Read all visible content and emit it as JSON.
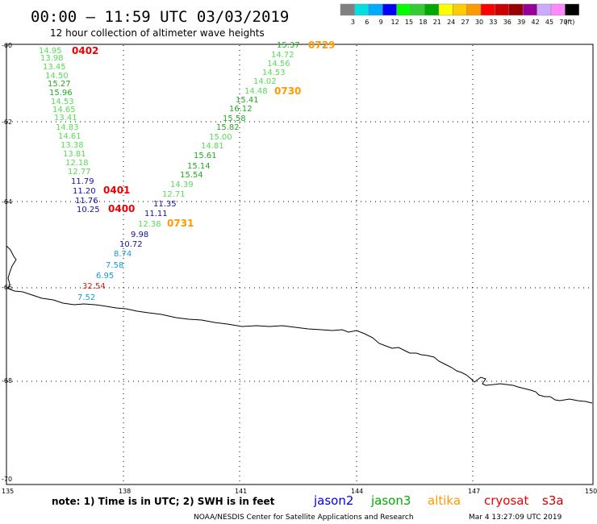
{
  "header": {
    "title": "00:00 – 11:59 UTC 03/03/2019",
    "subtitle": "12 hour collection of altimeter wave heights"
  },
  "legend": {
    "colors": [
      "#808080",
      "#00e0e0",
      "#00aaff",
      "#0000ff",
      "#00ff00",
      "#33cc33",
      "#00aa00",
      "#ffff00",
      "#ffcc00",
      "#ff9900",
      "#ff0000",
      "#cc0000",
      "#990000",
      "#990099",
      "#ccaaff",
      "#ff88ff",
      "#000000"
    ],
    "labels": [
      "3",
      "6",
      "9",
      "12",
      "15",
      "18",
      "21",
      "24",
      "27",
      "30",
      "33",
      "36",
      "39",
      "42",
      "45",
      "70",
      "(ft)"
    ]
  },
  "axes": {
    "lat_labels": [
      "-60",
      "-62",
      "-64",
      "-66",
      "-68",
      "-70"
    ],
    "lon_labels": [
      "135",
      "138",
      "141",
      "144",
      "147",
      "150"
    ]
  },
  "observations": [
    {
      "text": "14.95",
      "color": "#55dd55"
    },
    {
      "text": "13.98",
      "color": "#55dd55"
    },
    {
      "text": "13.45",
      "color": "#55dd55"
    },
    {
      "text": "14.50",
      "color": "#55dd55"
    },
    {
      "text": "15.27",
      "color": "#22aa22"
    },
    {
      "text": "15.96",
      "color": "#22aa22"
    },
    {
      "text": "14.53",
      "color": "#55dd55"
    },
    {
      "text": "14.65",
      "color": "#55dd55"
    },
    {
      "text": "13.41",
      "color": "#55dd55"
    },
    {
      "text": "14.83",
      "color": "#55dd55"
    },
    {
      "text": "14.61",
      "color": "#55dd55"
    },
    {
      "text": "13.38",
      "color": "#55dd55"
    },
    {
      "text": "13.81",
      "color": "#55dd55"
    },
    {
      "text": "12.18",
      "color": "#55dd55"
    },
    {
      "text": "12.77",
      "color": "#55dd55"
    },
    {
      "text": "11.79",
      "color": "#1111aa"
    },
    {
      "text": "11.20",
      "color": "#1111aa"
    },
    {
      "text": "11.76",
      "color": "#1111aa"
    },
    {
      "text": "10.25",
      "color": "#1111aa"
    },
    {
      "text": "15.37",
      "color": "#22aa22"
    },
    {
      "text": "14.72",
      "color": "#55dd55"
    },
    {
      "text": "14.56",
      "color": "#55dd55"
    },
    {
      "text": "14.53",
      "color": "#55dd55"
    },
    {
      "text": "14.02",
      "color": "#55dd55"
    },
    {
      "text": "14.48",
      "color": "#55dd55"
    },
    {
      "text": "15.41",
      "color": "#22aa22"
    },
    {
      "text": "16.12",
      "color": "#22aa22"
    },
    {
      "text": "15.58",
      "color": "#22aa22"
    },
    {
      "text": "15.82",
      "color": "#22aa22"
    },
    {
      "text": "15.00",
      "color": "#55dd55"
    },
    {
      "text": "14.81",
      "color": "#55dd55"
    },
    {
      "text": "15.61",
      "color": "#22aa22"
    },
    {
      "text": "15.14",
      "color": "#22aa22"
    },
    {
      "text": "15.54",
      "color": "#22aa22"
    },
    {
      "text": "14.39",
      "color": "#55dd55"
    },
    {
      "text": "12.71",
      "color": "#55dd55"
    },
    {
      "text": "11.35",
      "color": "#1111aa"
    },
    {
      "text": "11.11",
      "color": "#1111aa"
    },
    {
      "text": "12.38",
      "color": "#55dd55"
    },
    {
      "text": "9.98",
      "color": "#1111aa"
    },
    {
      "text": "10.72",
      "color": "#1111aa"
    },
    {
      "text": "8.74",
      "color": "#1199dd"
    },
    {
      "text": "7.58",
      "color": "#1199dd"
    },
    {
      "text": "6.95",
      "color": "#1199dd"
    },
    {
      "text": "32.54",
      "color": "#dd2222"
    },
    {
      "text": "7.52",
      "color": "#1199dd"
    }
  ],
  "time_labels": [
    {
      "text": "0402",
      "color": "#ee0000"
    },
    {
      "text": "0401",
      "color": "#ee0000"
    },
    {
      "text": "0400",
      "color": "#ee0000"
    },
    {
      "text": "0729",
      "color": "#ff9900"
    },
    {
      "text": "0730",
      "color": "#ff9900"
    },
    {
      "text": "0731",
      "color": "#ff9900"
    }
  ],
  "footer": {
    "note": "note:  1) Time is in UTC;  2) SWH is in feet",
    "satellites": [
      {
        "name": "jason2",
        "color": "#0000ee"
      },
      {
        "name": "jason3",
        "color": "#00aa00"
      },
      {
        "name": "altika",
        "color": "#ff9900"
      },
      {
        "name": "cryosat",
        "color": "#ee0000"
      },
      {
        "name": "s3a",
        "color": "#cc0000"
      }
    ],
    "credit": "NOAA/NESDIS Center for Satellite Applications and Research",
    "timestamp": "Mar  4 13:27:09 UTC 2019"
  }
}
